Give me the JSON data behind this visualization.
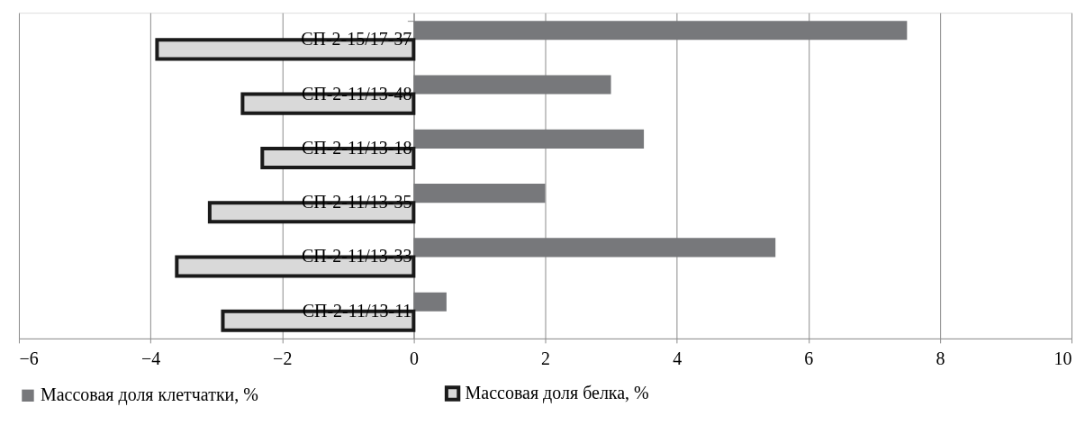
{
  "chart_data": {
    "type": "bar",
    "orientation": "horizontal",
    "categories": [
      "СП-2-15/17-37",
      "СП-2-11/13-48",
      "СП-2-11/13-18",
      "СП-2-11/13-35",
      "СП-2-11/13-33",
      "СП-2-11/13-11"
    ],
    "series": [
      {
        "name": "Массовая доля клетчатки, %",
        "color": "#77787b",
        "values": [
          7.5,
          3,
          3.5,
          2,
          5.5,
          0.5
        ]
      },
      {
        "name": "Массовая доля белка, %",
        "color": "#d9d9d9",
        "values": [
          -3.9,
          -2.6,
          -2.3,
          -3.1,
          -3.6,
          -2.9
        ]
      }
    ],
    "xlim": [
      -6,
      10
    ],
    "xticks": [
      -6,
      -4,
      -2,
      0,
      2,
      4,
      6,
      8,
      10
    ],
    "grid": "x",
    "legend": "bottom"
  }
}
